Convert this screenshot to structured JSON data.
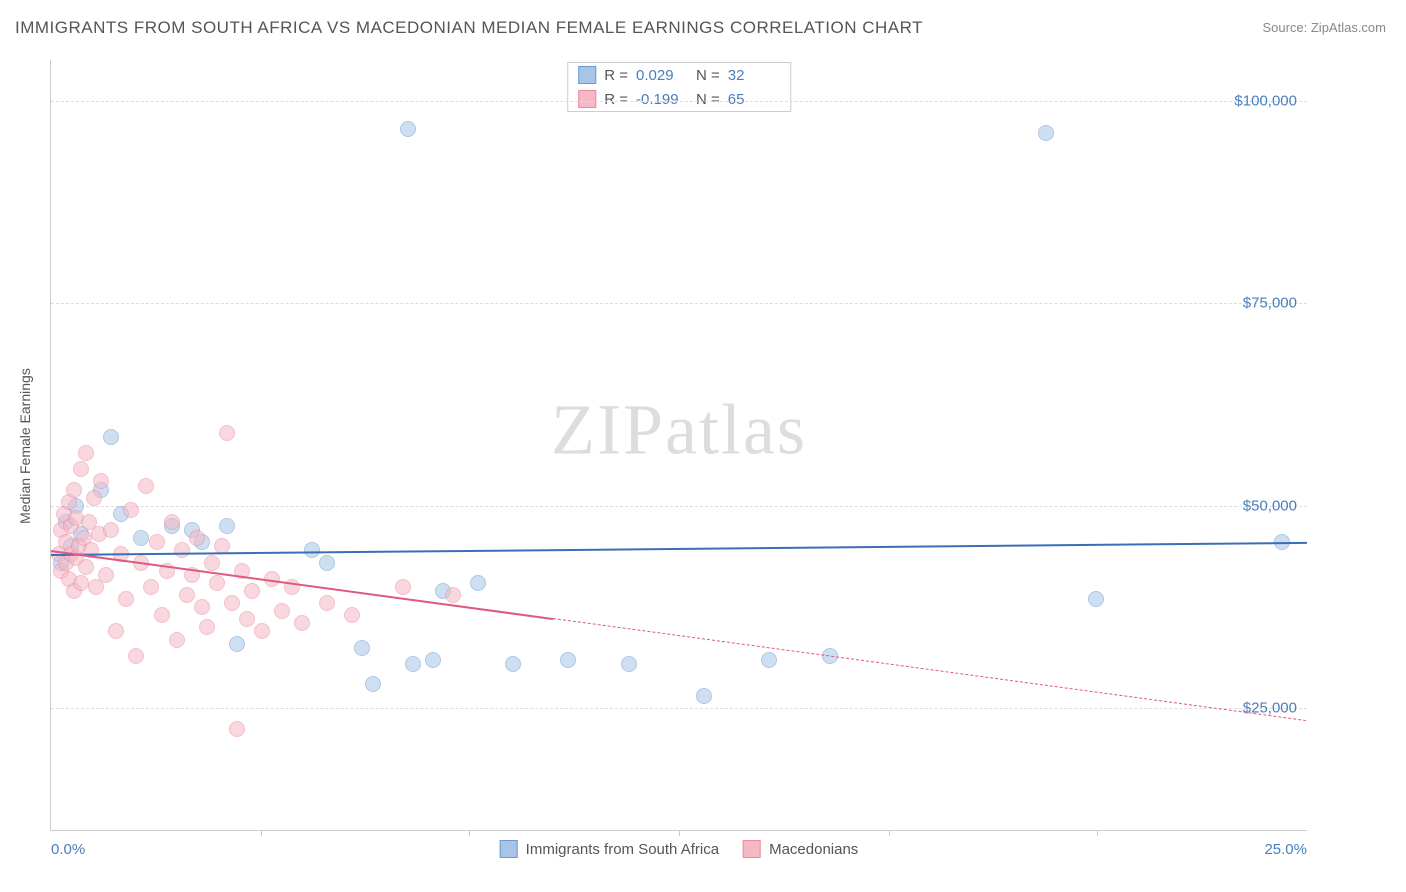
{
  "title": "IMMIGRANTS FROM SOUTH AFRICA VS MACEDONIAN MEDIAN FEMALE EARNINGS CORRELATION CHART",
  "source_prefix": "Source: ",
  "source_name": "ZipAtlas.com",
  "watermark": "ZIPatlas",
  "chart": {
    "type": "scatter",
    "ylabel": "Median Female Earnings",
    "xlim": [
      0,
      25
    ],
    "ylim": [
      10000,
      105000
    ],
    "x_ticks": [
      {
        "pos": 0.0,
        "label": "0.0%"
      },
      {
        "pos": 25.0,
        "label": "25.0%"
      }
    ],
    "x_minor_ticks": [
      4.17,
      8.33,
      12.5,
      16.67,
      20.83
    ],
    "y_ticks": [
      {
        "val": 25000,
        "label": "$25,000"
      },
      {
        "val": 50000,
        "label": "$50,000"
      },
      {
        "val": 75000,
        "label": "$75,000"
      },
      {
        "val": 100000,
        "label": "$100,000"
      }
    ],
    "background_color": "#ffffff",
    "grid_color": "#dddddd",
    "axis_color": "#cccccc",
    "tick_label_color": "#4a7ebb",
    "marker_radius": 8,
    "marker_opacity": 0.55,
    "series": [
      {
        "name": "Immigrants from South Africa",
        "color_fill": "#a8c5e8",
        "color_stroke": "#6b9bd1",
        "R": "0.029",
        "N": "32",
        "trend": {
          "x1": 0,
          "y1": 44000,
          "x2": 25,
          "y2": 45500,
          "color": "#3b6fb5",
          "width": 2,
          "dash_from_x": null
        },
        "points": [
          [
            0.2,
            43000
          ],
          [
            0.3,
            48000
          ],
          [
            0.4,
            45000
          ],
          [
            0.5,
            50000
          ],
          [
            0.6,
            46500
          ],
          [
            1.0,
            52000
          ],
          [
            1.2,
            58500
          ],
          [
            1.4,
            49000
          ],
          [
            1.8,
            46000
          ],
          [
            2.4,
            47500
          ],
          [
            2.8,
            47000
          ],
          [
            3.0,
            45500
          ],
          [
            3.5,
            47500
          ],
          [
            3.7,
            33000
          ],
          [
            5.2,
            44500
          ],
          [
            5.5,
            43000
          ],
          [
            6.2,
            32500
          ],
          [
            6.4,
            28000
          ],
          [
            7.1,
            96500
          ],
          [
            7.2,
            30500
          ],
          [
            7.6,
            31000
          ],
          [
            7.8,
            39500
          ],
          [
            8.5,
            40500
          ],
          [
            9.2,
            30500
          ],
          [
            10.3,
            31000
          ],
          [
            11.5,
            30500
          ],
          [
            13.0,
            26500
          ],
          [
            14.3,
            31000
          ],
          [
            15.5,
            31500
          ],
          [
            19.8,
            96000
          ],
          [
            20.8,
            38500
          ],
          [
            24.5,
            45500
          ]
        ]
      },
      {
        "name": "Macedonians",
        "color_fill": "#f5b8c5",
        "color_stroke": "#e88ba3",
        "R": "-0.199",
        "N": "65",
        "trend": {
          "x1": 0,
          "y1": 44500,
          "x2": 25,
          "y2": 23500,
          "color": "#e05a80",
          "width": 2,
          "dash_from_x": 10
        },
        "points": [
          [
            0.15,
            44000
          ],
          [
            0.2,
            47000
          ],
          [
            0.2,
            42000
          ],
          [
            0.25,
            49000
          ],
          [
            0.3,
            45500
          ],
          [
            0.3,
            43000
          ],
          [
            0.35,
            50500
          ],
          [
            0.35,
            41000
          ],
          [
            0.4,
            47500
          ],
          [
            0.4,
            44000
          ],
          [
            0.45,
            52000
          ],
          [
            0.45,
            39500
          ],
          [
            0.5,
            48500
          ],
          [
            0.5,
            43500
          ],
          [
            0.55,
            45000
          ],
          [
            0.6,
            54500
          ],
          [
            0.6,
            40500
          ],
          [
            0.65,
            46000
          ],
          [
            0.7,
            56500
          ],
          [
            0.7,
            42500
          ],
          [
            0.75,
            48000
          ],
          [
            0.8,
            44500
          ],
          [
            0.85,
            51000
          ],
          [
            0.9,
            40000
          ],
          [
            0.95,
            46500
          ],
          [
            1.0,
            53000
          ],
          [
            1.1,
            41500
          ],
          [
            1.2,
            47000
          ],
          [
            1.3,
            34500
          ],
          [
            1.4,
            44000
          ],
          [
            1.5,
            38500
          ],
          [
            1.6,
            49500
          ],
          [
            1.7,
            31500
          ],
          [
            1.8,
            43000
          ],
          [
            1.9,
            52500
          ],
          [
            2.0,
            40000
          ],
          [
            2.1,
            45500
          ],
          [
            2.2,
            36500
          ],
          [
            2.3,
            42000
          ],
          [
            2.4,
            48000
          ],
          [
            2.5,
            33500
          ],
          [
            2.6,
            44500
          ],
          [
            2.7,
            39000
          ],
          [
            2.8,
            41500
          ],
          [
            2.9,
            46000
          ],
          [
            3.0,
            37500
          ],
          [
            3.1,
            35000
          ],
          [
            3.2,
            43000
          ],
          [
            3.3,
            40500
          ],
          [
            3.4,
            45000
          ],
          [
            3.5,
            59000
          ],
          [
            3.6,
            38000
          ],
          [
            3.7,
            22500
          ],
          [
            3.8,
            42000
          ],
          [
            3.9,
            36000
          ],
          [
            4.0,
            39500
          ],
          [
            4.2,
            34500
          ],
          [
            4.4,
            41000
          ],
          [
            4.6,
            37000
          ],
          [
            4.8,
            40000
          ],
          [
            5.0,
            35500
          ],
          [
            5.5,
            38000
          ],
          [
            6.0,
            36500
          ],
          [
            7.0,
            40000
          ],
          [
            8.0,
            39000
          ]
        ]
      }
    ]
  },
  "legend": {
    "stats_labels": {
      "R": "R =",
      "N": "N ="
    }
  }
}
